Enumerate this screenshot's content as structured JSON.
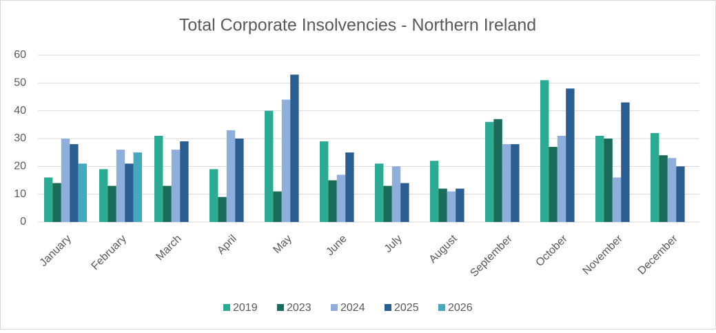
{
  "chart_data": {
    "type": "bar",
    "title": "Total Corporate Insolvencies - Northern Ireland",
    "categories": [
      "January",
      "February",
      "March",
      "April",
      "May",
      "June",
      "July",
      "August",
      "September",
      "October",
      "November",
      "December"
    ],
    "series": [
      {
        "name": "2019",
        "color": "#2bab94",
        "values": [
          16,
          19,
          31,
          19,
          40,
          29,
          21,
          22,
          36,
          51,
          31,
          32
        ]
      },
      {
        "name": "2023",
        "color": "#1b6b5b",
        "values": [
          14,
          13,
          13,
          9,
          11,
          15,
          13,
          12,
          37,
          27,
          30,
          24
        ]
      },
      {
        "name": "2024",
        "color": "#8eaedb",
        "values": [
          30,
          26,
          26,
          33,
          44,
          17,
          20,
          11,
          28,
          31,
          16,
          23
        ]
      },
      {
        "name": "2025",
        "color": "#2a5d92",
        "values": [
          28,
          21,
          29,
          30,
          53,
          25,
          14,
          12,
          28,
          48,
          43,
          20
        ]
      },
      {
        "name": "2026",
        "color": "#45a9bd",
        "values": [
          21,
          25,
          null,
          null,
          null,
          null,
          null,
          null,
          null,
          null,
          null,
          null
        ]
      }
    ],
    "ylim": [
      0,
      60
    ],
    "yticks": [
      0,
      10,
      20,
      30,
      40,
      50,
      60
    ],
    "grid": true,
    "legend": "bottom"
  }
}
